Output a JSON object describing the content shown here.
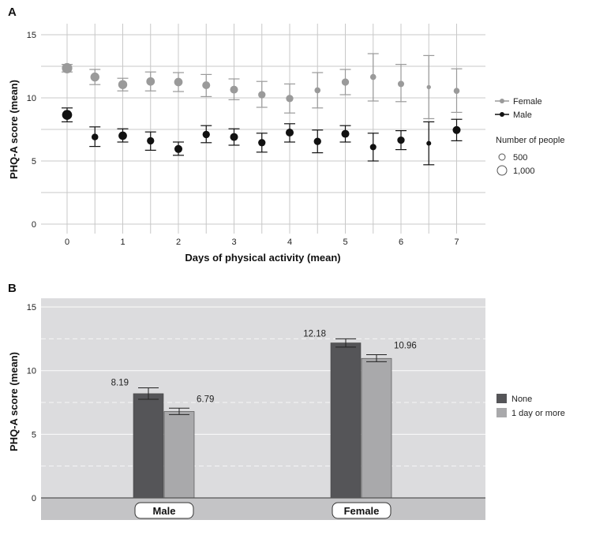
{
  "colors": {
    "female": "#9a9a9a",
    "male": "#111111",
    "bar_none": "#555558",
    "bar_one_or_more": "#a9a9ab",
    "panel_b_bg": "#dcdcde",
    "grid_a": "#c8c8c8"
  },
  "chart_data": [
    {
      "panel": "A",
      "type": "scatter",
      "xlabel": "Days of physical activity (mean)",
      "ylabel": "PHQ-A score (mean)",
      "xlim": [
        0,
        7
      ],
      "ylim": [
        0,
        15
      ],
      "x_ticks": [
        "0",
        "1",
        "2",
        "3",
        "4",
        "5",
        "6",
        "7"
      ],
      "y_ticks": [
        "0",
        "5",
        "10",
        "15"
      ],
      "grid": true,
      "legend_placement": "right",
      "legend_size_title": "Number of people",
      "legend_sizes": [
        "500",
        "1,000"
      ],
      "series": [
        {
          "name": "Female",
          "color": "#9a9a9a",
          "points": [
            {
              "x": 0,
              "y": 12.35,
              "lo": 12.05,
              "hi": 12.65,
              "n": 1200
            },
            {
              "x": 0.5,
              "y": 11.65,
              "lo": 11.05,
              "hi": 12.25,
              "n": 900
            },
            {
              "x": 1,
              "y": 11.05,
              "lo": 10.55,
              "hi": 11.55,
              "n": 900
            },
            {
              "x": 1.5,
              "y": 11.3,
              "lo": 10.55,
              "hi": 12.05,
              "n": 800
            },
            {
              "x": 2,
              "y": 11.25,
              "lo": 10.5,
              "hi": 12.0,
              "n": 800
            },
            {
              "x": 2.5,
              "y": 11.0,
              "lo": 10.1,
              "hi": 11.85,
              "n": 700
            },
            {
              "x": 3,
              "y": 10.65,
              "lo": 9.85,
              "hi": 11.5,
              "n": 700
            },
            {
              "x": 3.5,
              "y": 10.25,
              "lo": 9.25,
              "hi": 11.3,
              "n": 600
            },
            {
              "x": 4,
              "y": 9.95,
              "lo": 8.8,
              "hi": 11.1,
              "n": 600
            },
            {
              "x": 4.5,
              "y": 10.6,
              "lo": 9.2,
              "hi": 12.0,
              "n": 400
            },
            {
              "x": 5,
              "y": 11.25,
              "lo": 10.25,
              "hi": 12.25,
              "n": 600
            },
            {
              "x": 5.5,
              "y": 11.65,
              "lo": 9.75,
              "hi": 13.5,
              "n": 400
            },
            {
              "x": 6,
              "y": 11.1,
              "lo": 9.7,
              "hi": 12.65,
              "n": 450
            },
            {
              "x": 6.5,
              "y": 10.85,
              "lo": 8.35,
              "hi": 13.35,
              "n": 200
            },
            {
              "x": 7,
              "y": 10.55,
              "lo": 8.85,
              "hi": 12.3,
              "n": 400
            }
          ]
        },
        {
          "name": "Male",
          "color": "#111111",
          "points": [
            {
              "x": 0,
              "y": 8.65,
              "lo": 8.1,
              "hi": 9.2,
              "n": 1100
            },
            {
              "x": 0.5,
              "y": 6.9,
              "lo": 6.15,
              "hi": 7.7,
              "n": 500
            },
            {
              "x": 1,
              "y": 7.0,
              "lo": 6.5,
              "hi": 7.55,
              "n": 800
            },
            {
              "x": 1.5,
              "y": 6.6,
              "lo": 5.85,
              "hi": 7.3,
              "n": 600
            },
            {
              "x": 2,
              "y": 5.95,
              "lo": 5.45,
              "hi": 6.5,
              "n": 700
            },
            {
              "x": 2.5,
              "y": 7.1,
              "lo": 6.45,
              "hi": 7.8,
              "n": 600
            },
            {
              "x": 3,
              "y": 6.9,
              "lo": 6.25,
              "hi": 7.55,
              "n": 700
            },
            {
              "x": 3.5,
              "y": 6.45,
              "lo": 5.7,
              "hi": 7.2,
              "n": 600
            },
            {
              "x": 4,
              "y": 7.25,
              "lo": 6.5,
              "hi": 7.95,
              "n": 700
            },
            {
              "x": 4.5,
              "y": 6.55,
              "lo": 5.65,
              "hi": 7.45,
              "n": 600
            },
            {
              "x": 5,
              "y": 7.15,
              "lo": 6.5,
              "hi": 7.8,
              "n": 700
            },
            {
              "x": 5.5,
              "y": 6.1,
              "lo": 5.0,
              "hi": 7.2,
              "n": 450
            },
            {
              "x": 6,
              "y": 6.65,
              "lo": 5.9,
              "hi": 7.4,
              "n": 600
            },
            {
              "x": 6.5,
              "y": 6.4,
              "lo": 4.7,
              "hi": 8.1,
              "n": 250
            },
            {
              "x": 7,
              "y": 7.45,
              "lo": 6.6,
              "hi": 8.3,
              "n": 700
            }
          ]
        }
      ]
    },
    {
      "panel": "B",
      "type": "bar",
      "ylabel": "PHQ-A score (mean)",
      "ylim": [
        0,
        15
      ],
      "y_ticks": [
        "0",
        "5",
        "10",
        "15"
      ],
      "categories": [
        "Male",
        "Female"
      ],
      "legend_placement": "right",
      "series": [
        {
          "name": "None",
          "color": "#555558",
          "values": [
            8.19,
            12.18
          ],
          "labels": [
            "8.19",
            "12.18"
          ],
          "err_lo": [
            7.75,
            11.85
          ],
          "err_hi": [
            8.65,
            12.5
          ]
        },
        {
          "name": "1 day or more",
          "color": "#a9a9ab",
          "values": [
            6.79,
            10.96
          ],
          "labels": [
            "6.79",
            "10.96"
          ],
          "err_lo": [
            6.55,
            10.7
          ],
          "err_hi": [
            7.05,
            11.25
          ]
        }
      ]
    }
  ],
  "panel_a": {
    "letter": "A",
    "xlabel": "Days of physical activity (mean)",
    "ylabel": "PHQ-A score (mean)",
    "legend_female": "Female",
    "legend_male": "Male",
    "legend_size_title": "Number of people",
    "legend_size_small": "500",
    "legend_size_large": "1,000"
  },
  "panel_b": {
    "letter": "B",
    "ylabel": "PHQ-A score (mean)",
    "legend_none": "None",
    "legend_more": "1 day or more",
    "group_male": "Male",
    "group_female": "Female"
  }
}
